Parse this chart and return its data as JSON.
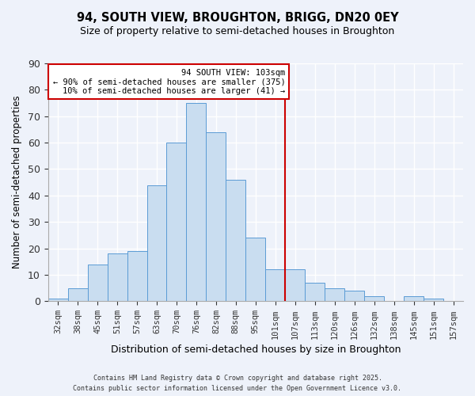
{
  "title": "94, SOUTH VIEW, BROUGHTON, BRIGG, DN20 0EY",
  "subtitle": "Size of property relative to semi-detached houses in Broughton",
  "xlabel": "Distribution of semi-detached houses by size in Broughton",
  "ylabel": "Number of semi-detached properties",
  "bar_labels": [
    "32sqm",
    "38sqm",
    "45sqm",
    "51sqm",
    "57sqm",
    "63sqm",
    "70sqm",
    "76sqm",
    "82sqm",
    "88sqm",
    "95sqm",
    "101sqm",
    "107sqm",
    "113sqm",
    "120sqm",
    "126sqm",
    "132sqm",
    "138sqm",
    "145sqm",
    "151sqm",
    "157sqm"
  ],
  "bar_values": [
    1,
    5,
    14,
    18,
    19,
    44,
    60,
    75,
    64,
    46,
    24,
    12,
    12,
    7,
    5,
    4,
    2,
    0,
    2,
    1,
    0
  ],
  "bar_color": "#c9ddf0",
  "bar_edge_color": "#5b9bd5",
  "vline_pos": 11.5,
  "vline_color": "#cc0000",
  "annotation_title": "94 SOUTH VIEW: 103sqm",
  "annotation_line1": "← 90% of semi-detached houses are smaller (375)",
  "annotation_line2": "10% of semi-detached houses are larger (41) →",
  "footer_line1": "Contains HM Land Registry data © Crown copyright and database right 2025.",
  "footer_line2": "Contains public sector information licensed under the Open Government Licence v3.0.",
  "background_color": "#eef2fa",
  "grid_color": "#ffffff",
  "ylim": [
    0,
    90
  ],
  "yticks": [
    0,
    10,
    20,
    30,
    40,
    50,
    60,
    70,
    80,
    90
  ]
}
